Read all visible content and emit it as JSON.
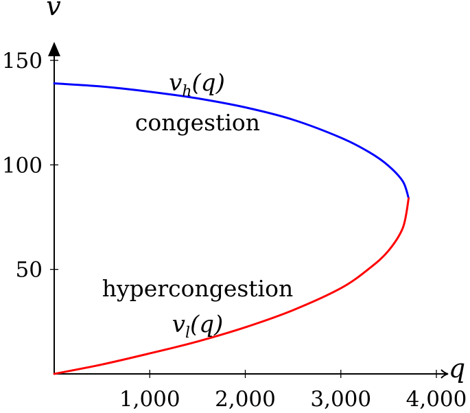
{
  "chart_data": {
    "type": "line",
    "title": "",
    "xlabel": "q",
    "ylabel": "v",
    "xlim": [
      0,
      4000
    ],
    "ylim": [
      0,
      150
    ],
    "x_ticks": [
      1000,
      2000,
      3000,
      4000
    ],
    "x_tick_labels": [
      "1,000",
      "2,000",
      "3,000",
      "4,000"
    ],
    "y_ticks": [
      50,
      100,
      150
    ],
    "y_tick_labels": [
      "50",
      "100",
      "150"
    ],
    "grid": false,
    "legend": "none",
    "series": [
      {
        "color": "#0000ff",
        "x": [
          0,
          500,
          1000,
          1500,
          2000,
          2500,
          3000,
          3300,
          3500,
          3650,
          3710
        ],
        "y": [
          139,
          137.5,
          135,
          131.8,
          127.5,
          121.6,
          113,
          106,
          99.5,
          92,
          84
        ]
      },
      {
        "color": "#ff0000",
        "x": [
          0,
          500,
          1000,
          1500,
          2000,
          2500,
          3000,
          3300,
          3500,
          3650,
          3710
        ],
        "y": [
          0,
          4.5,
          9.8,
          15.5,
          22.3,
          30.5,
          41,
          50.5,
          59,
          70,
          84
        ]
      }
    ],
    "annotations": {
      "congestion": "congestion",
      "hypercongestion": "hypercongestion",
      "vh_base": "v",
      "vh_sub": "h",
      "vh_arg": "(q)",
      "vl_base": "v",
      "vl_sub": "l",
      "vl_arg": "(q)"
    }
  }
}
